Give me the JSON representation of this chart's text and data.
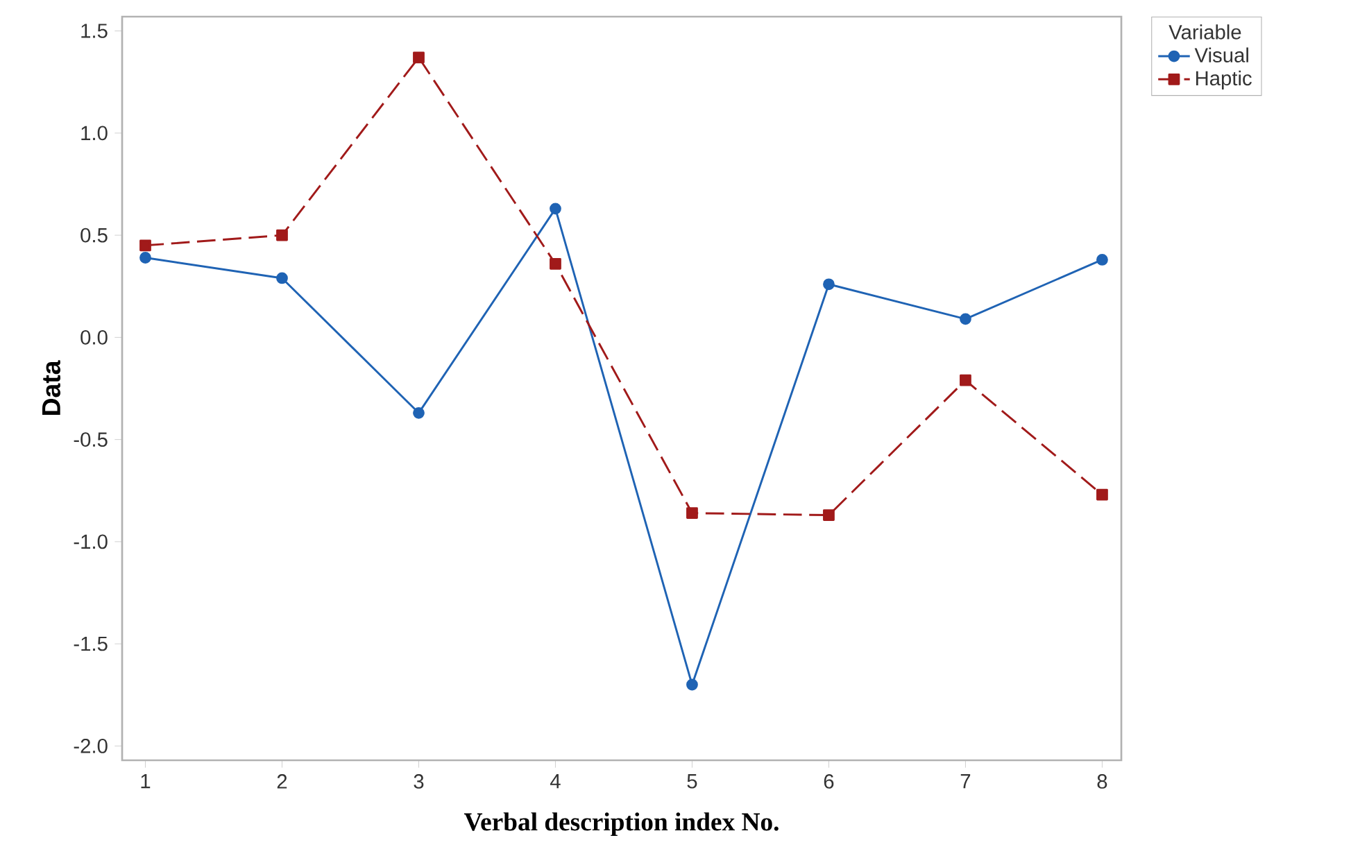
{
  "chart_data": {
    "type": "line",
    "xlabel": "Verbal description index No.",
    "ylabel": "Data",
    "legend_title": "Variable",
    "legend": "top right",
    "x": [
      1,
      2,
      3,
      4,
      5,
      6,
      7,
      8
    ],
    "xlim": [
      0.83,
      8.14
    ],
    "xticks": [
      1,
      2,
      3,
      4,
      5,
      6,
      7,
      8
    ],
    "ylim": [
      -2.07,
      1.57
    ],
    "yticks": [
      {
        "value": -2.0,
        "label": "-2.0"
      },
      {
        "value": -1.5,
        "label": "-1.5"
      },
      {
        "value": -1.0,
        "label": "-1.0"
      },
      {
        "value": -0.5,
        "label": "-0.5"
      },
      {
        "value": 0.0,
        "label": "0.0"
      },
      {
        "value": 0.5,
        "label": "0.5"
      },
      {
        "value": 1.0,
        "label": "1.0"
      },
      {
        "value": 1.5,
        "label": "1.5"
      }
    ],
    "grid": false,
    "series": [
      {
        "name": "Visual",
        "color": "#1f63b4",
        "marker": "circle",
        "line_style": "solid",
        "values": [
          0.39,
          0.29,
          -0.37,
          0.63,
          -1.7,
          0.26,
          0.09,
          0.38
        ]
      },
      {
        "name": "Haptic",
        "color": "#a11a1a",
        "marker": "square",
        "line_style": "dashed",
        "values": [
          0.45,
          0.5,
          1.37,
          0.36,
          -0.86,
          -0.87,
          -0.21,
          -0.77
        ]
      }
    ]
  }
}
